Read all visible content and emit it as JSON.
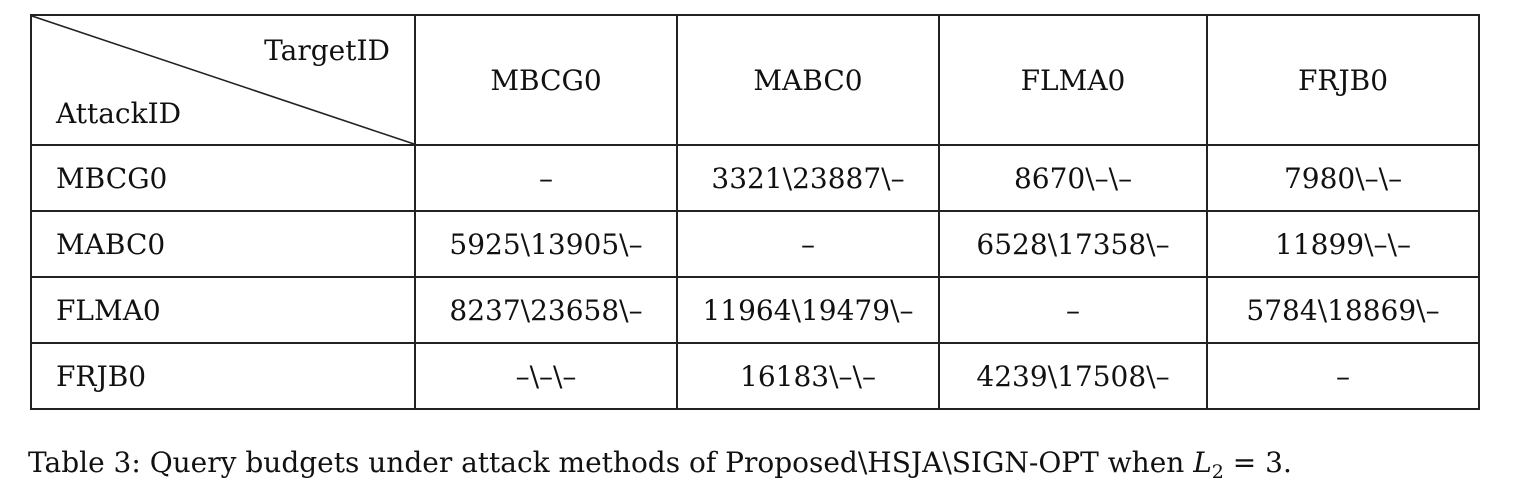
{
  "table": {
    "corner": {
      "top_right_label": "TargetID",
      "bottom_left_label": "AttackID"
    },
    "column_headers": [
      "MBCG0",
      "MABC0",
      "FLMA0",
      "FRJB0"
    ],
    "rows": [
      {
        "label": "MBCG0",
        "cells": [
          "–",
          "3321\\23887\\–",
          "8670\\–\\–",
          "7980\\–\\–"
        ]
      },
      {
        "label": "MABC0",
        "cells": [
          "5925\\13905\\–",
          "–",
          "6528\\17358\\–",
          "11899\\–\\–"
        ]
      },
      {
        "label": "FLMA0",
        "cells": [
          "8237\\23658\\–",
          "11964\\19479\\–",
          "–",
          "5784\\18869\\–"
        ]
      },
      {
        "label": "FRJB0",
        "cells": [
          "–\\–\\–",
          "16183\\–\\–",
          "4239\\17508\\–",
          "–"
        ]
      }
    ]
  },
  "caption": {
    "text": "Table 3:   Query budgets under attack methods of Proposed\\HSJA\\SIGN-OPT when ",
    "math_var": "L",
    "math_sub": "2",
    "math_rest": " = 3."
  }
}
